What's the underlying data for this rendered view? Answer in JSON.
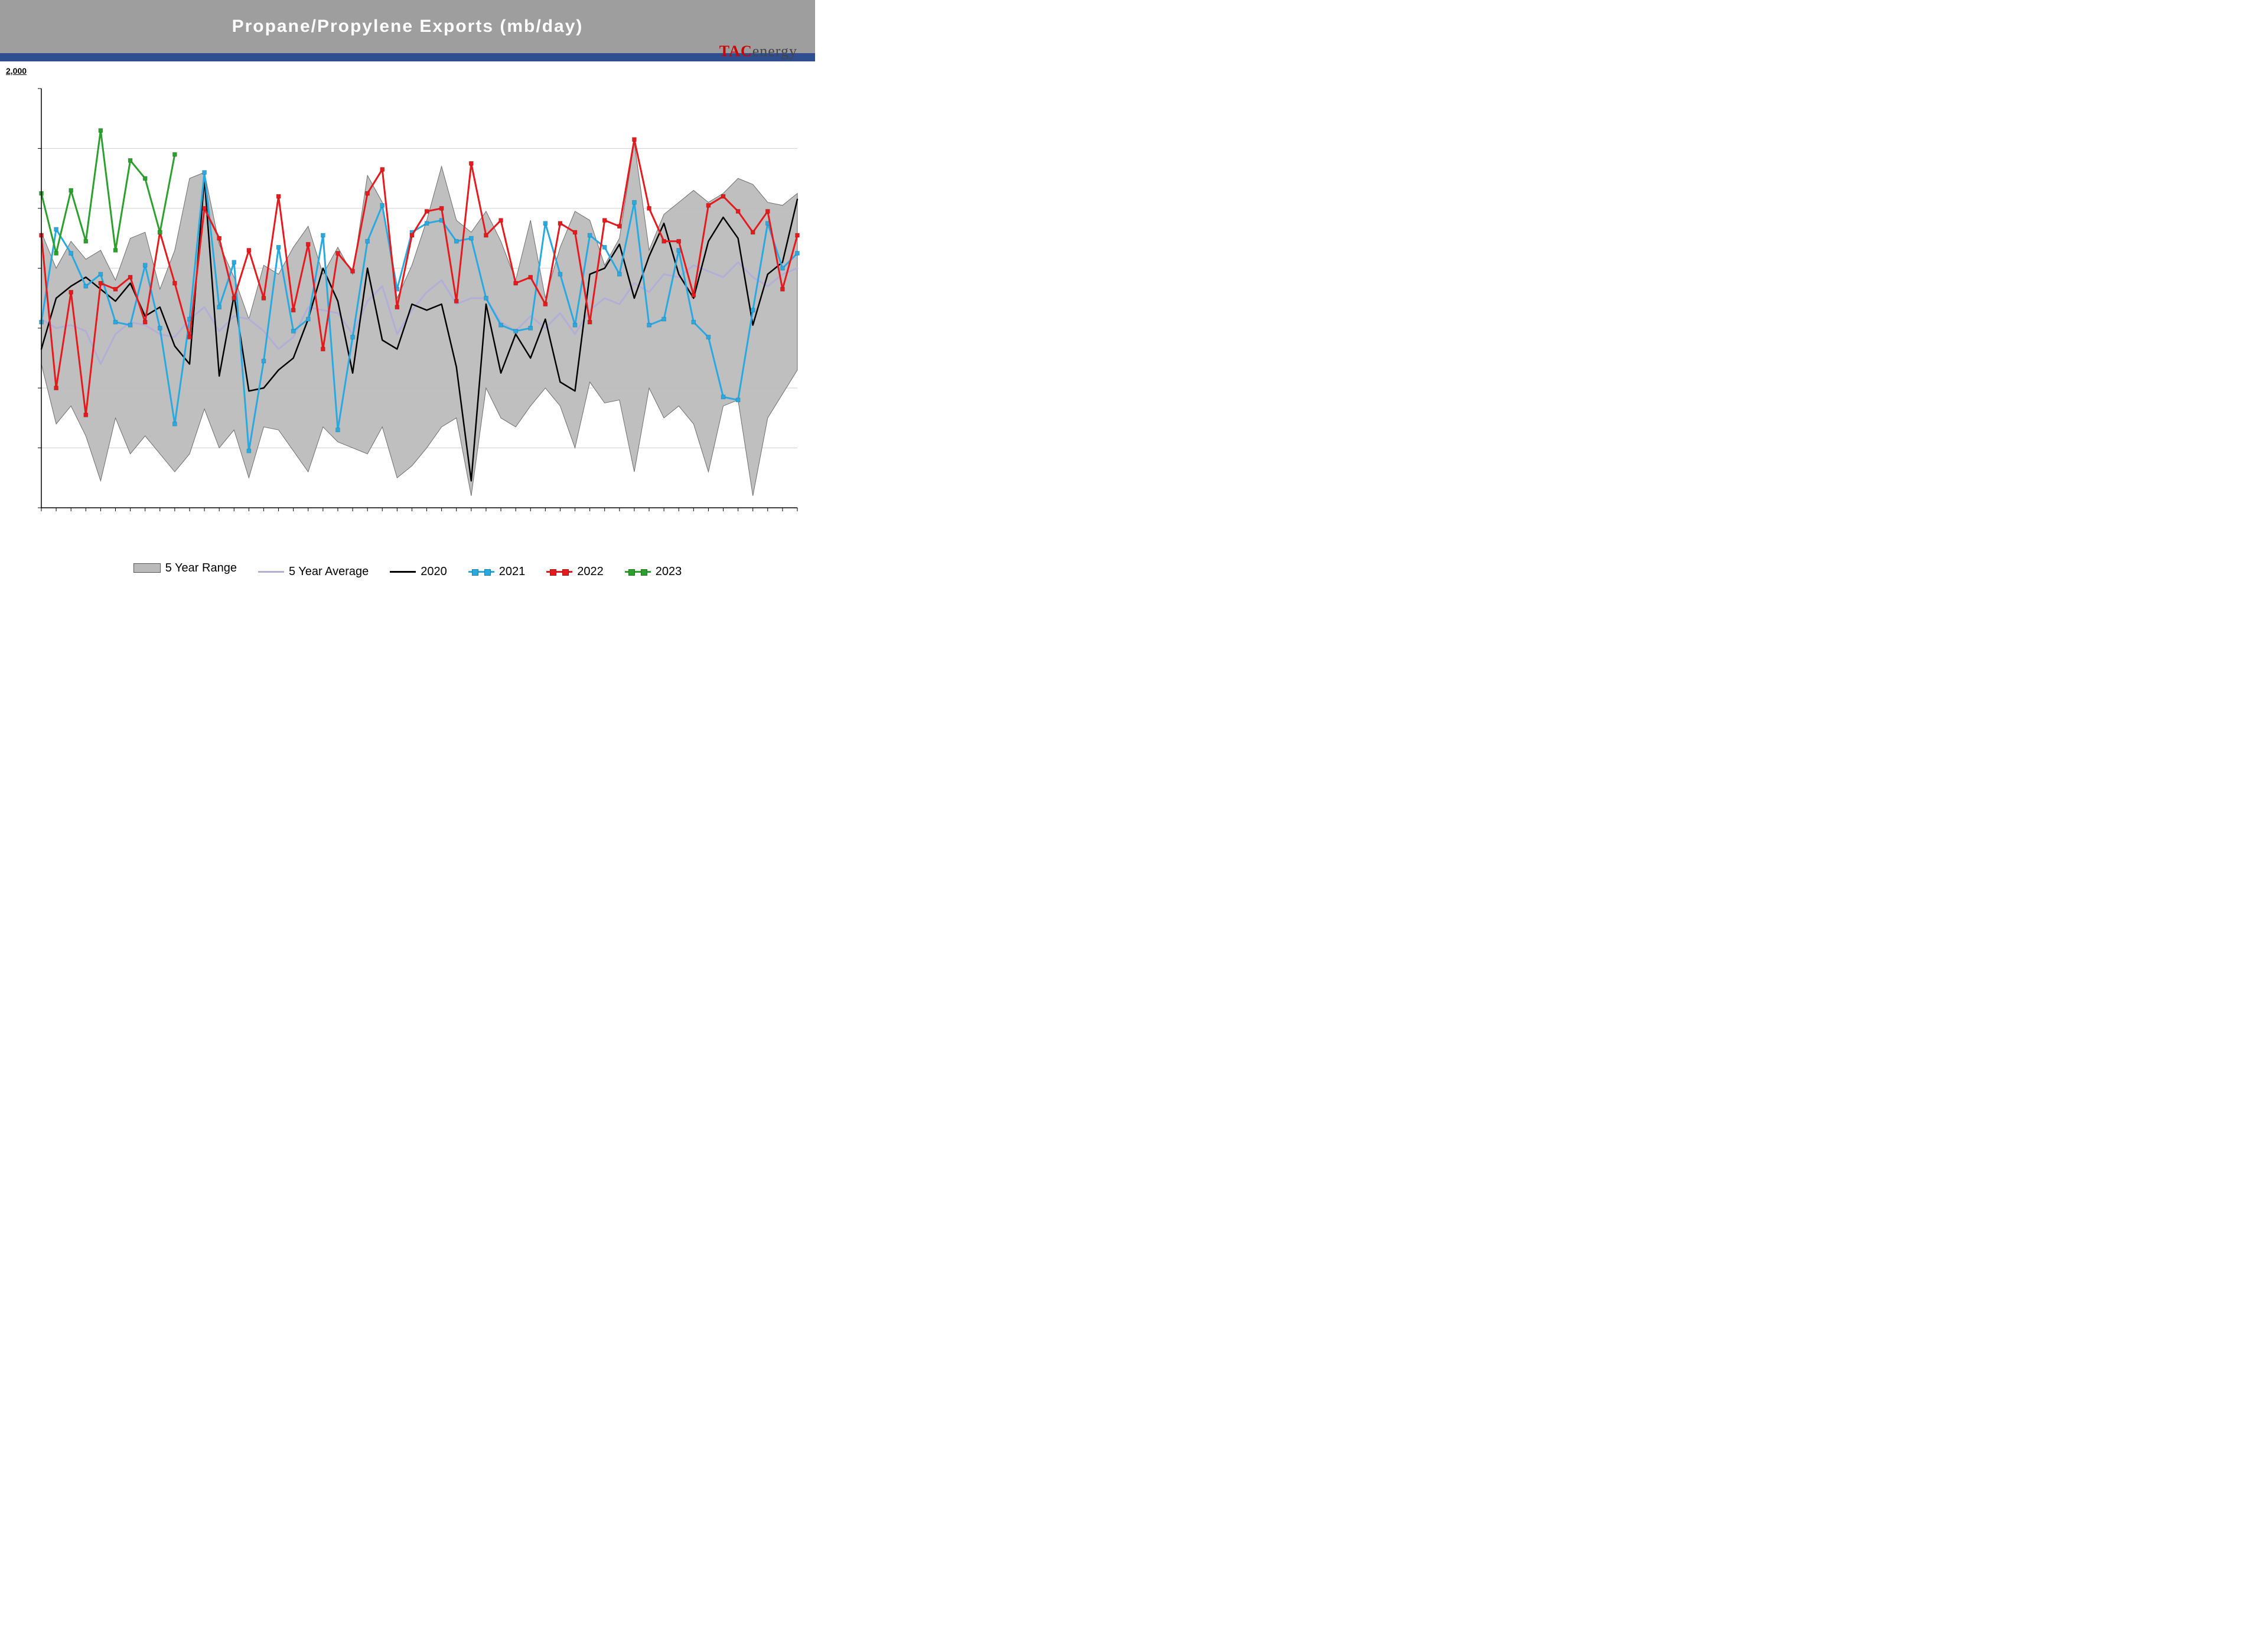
{
  "title": "Propane/Propylene Exports (mb/day)",
  "logo": {
    "red": "TAC",
    "dark": "energy"
  },
  "y_axis_top_label": "2,000",
  "chart": {
    "type": "line_with_range",
    "n_points": 52,
    "xlim": [
      0,
      51
    ],
    "ylim": [
      600,
      2000
    ],
    "ytick_step": 200,
    "yticks_lines": [
      800,
      1000,
      1200,
      1400,
      1600,
      1800
    ],
    "background_color": "#ffffff",
    "grid_color": "#cfcfcf",
    "axis_color": "#000000",
    "colors": {
      "range_fill": "#bcbcbc",
      "range_stroke": "#6e6e6e",
      "avg": "#b2aed6",
      "y2020": "#000000",
      "y2021": "#2aa9e0",
      "y2022": "#e41a1c",
      "y2023": "#2ca02c"
    },
    "line_width": {
      "avg": 3,
      "y2020": 2.5,
      "y2021": 3,
      "y2022": 3,
      "y2023": 3
    },
    "marker_size": 7,
    "series": {
      "range_high": [
        1520,
        1400,
        1490,
        1430,
        1460,
        1360,
        1500,
        1520,
        1330,
        1460,
        1700,
        1720,
        1480,
        1370,
        1230,
        1410,
        1380,
        1470,
        1540,
        1380,
        1470,
        1380,
        1710,
        1620,
        1300,
        1410,
        1560,
        1740,
        1560,
        1520,
        1590,
        1490,
        1360,
        1560,
        1300,
        1470,
        1590,
        1560,
        1410,
        1500,
        1820,
        1460,
        1580,
        1620,
        1660,
        1620,
        1650,
        1700,
        1680,
        1620,
        1610,
        1650
      ],
      "range_low": [
        1080,
        880,
        940,
        840,
        690,
        900,
        780,
        840,
        780,
        720,
        780,
        930,
        800,
        860,
        700,
        870,
        860,
        790,
        720,
        870,
        820,
        800,
        780,
        870,
        700,
        740,
        800,
        870,
        900,
        640,
        1000,
        900,
        870,
        940,
        1000,
        940,
        800,
        1020,
        950,
        960,
        720,
        1000,
        900,
        940,
        880,
        720,
        940,
        960,
        640,
        900,
        980,
        1060
      ],
      "avg": [
        1230,
        1200,
        1210,
        1190,
        1080,
        1180,
        1220,
        1210,
        1180,
        1170,
        1230,
        1270,
        1190,
        1240,
        1230,
        1190,
        1130,
        1170,
        1270,
        1260,
        1250,
        1180,
        1290,
        1340,
        1180,
        1260,
        1320,
        1360,
        1280,
        1300,
        1300,
        1220,
        1190,
        1240,
        1200,
        1250,
        1180,
        1260,
        1300,
        1280,
        1350,
        1320,
        1380,
        1370,
        1410,
        1390,
        1370,
        1420,
        1370,
        1340,
        1380,
        1400
      ],
      "y2020": [
        1130,
        1300,
        1340,
        1370,
        1330,
        1290,
        1350,
        1240,
        1270,
        1140,
        1080,
        1700,
        1040,
        1310,
        990,
        1000,
        1060,
        1100,
        1230,
        1400,
        1290,
        1050,
        1400,
        1160,
        1130,
        1280,
        1260,
        1280,
        1070,
        690,
        1280,
        1050,
        1180,
        1100,
        1230,
        1020,
        990,
        1380,
        1400,
        1480,
        1300,
        1440,
        1550,
        1380,
        1300,
        1490,
        1570,
        1500,
        1210,
        1380,
        1420,
        1630
      ],
      "y2021": [
        1220,
        1530,
        1450,
        1340,
        1380,
        1220,
        1210,
        1410,
        1200,
        880,
        1230,
        1720,
        1270,
        1420,
        790,
        1090,
        1470,
        1190,
        1230,
        1510,
        860,
        1170,
        1490,
        1610,
        1330,
        1520,
        1550,
        1560,
        1490,
        1500,
        1300,
        1210,
        1190,
        1200,
        1550,
        1380,
        1210,
        1510,
        1470,
        1380,
        1620,
        1210,
        1230,
        1460,
        1220,
        1170,
        970,
        960,
        1260,
        1550,
        1400,
        1450
      ],
      "y2022": [
        1510,
        1000,
        1320,
        910,
        1350,
        1330,
        1370,
        1220,
        1520,
        1350,
        1170,
        1600,
        1500,
        1300,
        1460,
        1300,
        1640,
        1260,
        1480,
        1130,
        1450,
        1390,
        1650,
        1730,
        1270,
        1510,
        1590,
        1600,
        1290,
        1750,
        1510,
        1560,
        1350,
        1370,
        1280,
        1550,
        1520,
        1220,
        1560,
        1540,
        1830,
        1600,
        1490,
        1490,
        1310,
        1610,
        1640,
        1590,
        1520,
        1590,
        1330,
        1510
      ],
      "y2023": [
        1650,
        1450,
        1660,
        1490,
        1860,
        1460,
        1760,
        1700,
        1520,
        1780
      ]
    },
    "legend": [
      {
        "key": "range",
        "label": "5 Year Range"
      },
      {
        "key": "avg",
        "label": "5 Year Average"
      },
      {
        "key": "y2020",
        "label": "2020"
      },
      {
        "key": "y2021",
        "label": "2021"
      },
      {
        "key": "y2022",
        "label": "2022"
      },
      {
        "key": "y2023",
        "label": "2023"
      }
    ]
  }
}
